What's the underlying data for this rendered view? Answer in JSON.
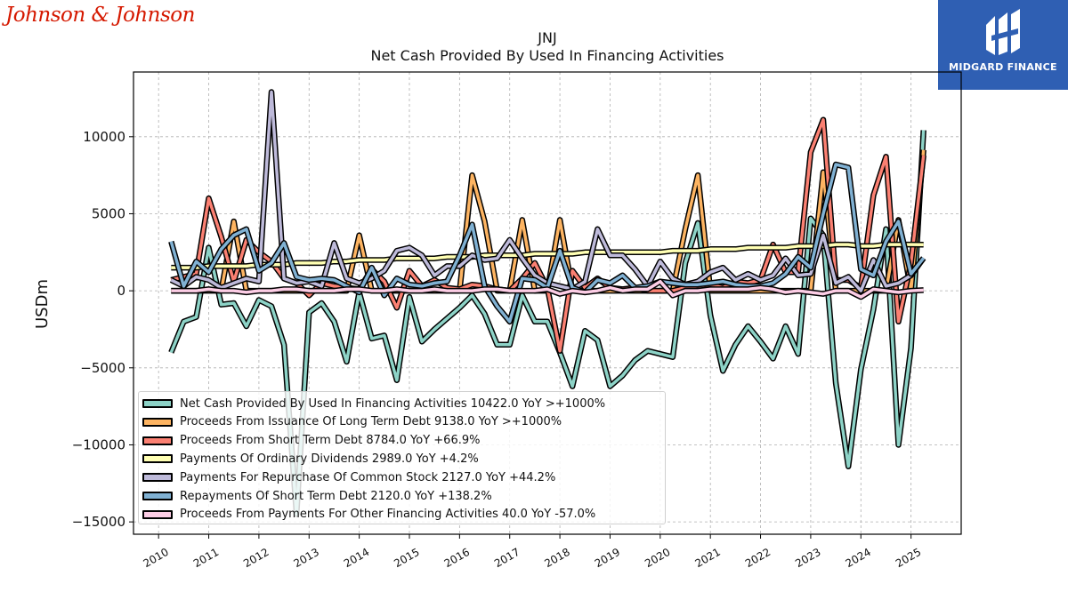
{
  "header": {
    "logo_left_text": "Johnson & Johnson",
    "logo_right_text": "MIDGARD FINANCE"
  },
  "colors": {
    "logo_left": "#d51900",
    "logo_right_bg": "#2f5fb3"
  },
  "chart_data": {
    "type": "line",
    "title": "JNJ",
    "subtitle": "Net Cash Provided By Used In Financing Activities",
    "ylabel": "USDm",
    "xlabel": "",
    "ylim": [
      -15800,
      14200
    ],
    "xlim": [
      2009.5,
      2026.0
    ],
    "yticks": [
      -15000,
      -10000,
      -5000,
      0,
      5000,
      10000
    ],
    "ytick_labels": [
      "−15000",
      "−10000",
      "−5000",
      "0",
      "5000",
      "10000"
    ],
    "xticks": [
      2010,
      2011,
      2012,
      2013,
      2014,
      2015,
      2016,
      2017,
      2018,
      2019,
      2020,
      2021,
      2022,
      2023,
      2024,
      2025
    ],
    "xtick_labels": [
      "2010",
      "2011",
      "2012",
      "2013",
      "2014",
      "2015",
      "2016",
      "2017",
      "2018",
      "2019",
      "2020",
      "2021",
      "2022",
      "2023",
      "2024",
      "2025"
    ],
    "grid": true,
    "legend_position": "lower-left",
    "series": [
      {
        "name": "Net Cash Provided By Used In Financing Activities",
        "legend_label": "Net Cash Provided By Used In Financing Activities  10422.0 YoY >+1000%",
        "color": "#8dd3c7",
        "x": [
          2010.25,
          2010.5,
          2010.75,
          2011.0,
          2011.25,
          2011.5,
          2011.75,
          2012.0,
          2012.25,
          2012.5,
          2012.75,
          2013.0,
          2013.25,
          2013.5,
          2013.75,
          2014.0,
          2014.25,
          2014.5,
          2014.75,
          2015.0,
          2015.25,
          2015.5,
          2015.75,
          2016.0,
          2016.25,
          2016.5,
          2016.75,
          2017.0,
          2017.25,
          2017.5,
          2017.75,
          2018.0,
          2018.25,
          2018.5,
          2018.75,
          2019.0,
          2019.25,
          2019.5,
          2019.75,
          2020.0,
          2020.25,
          2020.5,
          2020.75,
          2021.0,
          2021.25,
          2021.5,
          2021.75,
          2022.0,
          2022.25,
          2022.5,
          2022.75,
          2023.0,
          2023.25,
          2023.5,
          2023.75,
          2024.0,
          2024.25,
          2024.5,
          2024.75,
          2025.0,
          2025.25
        ],
        "y": [
          -4000,
          -2000,
          -1700,
          2800,
          -900,
          -800,
          -2300,
          -600,
          -1000,
          -3500,
          -14500,
          -1400,
          -800,
          -2000,
          -4600,
          -100,
          -3100,
          -2900,
          -5800,
          -400,
          -3300,
          -2500,
          -1800,
          -1100,
          -300,
          -1500,
          -3500,
          -3500,
          -300,
          -2000,
          -2000,
          -4000,
          -6200,
          -2600,
          -3200,
          -6200,
          -5500,
          -4500,
          -3900,
          -4100,
          -4300,
          1800,
          4400,
          -1600,
          -5200,
          -3500,
          -2300,
          -3300,
          -4400,
          -2300,
          -4100,
          4700,
          3600,
          -6000,
          -11400,
          -5100,
          -1200,
          4000,
          -10000,
          -3700,
          10422
        ]
      },
      {
        "name": "Proceeds From Issuance Of Long Term Debt",
        "legend_label": "Proceeds From Issuance Of Long Term Debt  9138.0 YoY >+1000%",
        "color": "#fdb462",
        "x": [
          2010.25,
          2010.5,
          2010.75,
          2011.0,
          2011.25,
          2011.5,
          2011.75,
          2012.0,
          2012.25,
          2012.5,
          2012.75,
          2013.0,
          2013.25,
          2013.5,
          2013.75,
          2014.0,
          2014.25,
          2014.5,
          2014.75,
          2015.0,
          2015.25,
          2015.5,
          2015.75,
          2016.0,
          2016.25,
          2016.5,
          2016.75,
          2017.0,
          2017.25,
          2017.5,
          2017.75,
          2018.0,
          2018.25,
          2018.5,
          2018.75,
          2019.0,
          2019.25,
          2019.5,
          2019.75,
          2020.0,
          2020.25,
          2020.5,
          2020.75,
          2021.0,
          2021.25,
          2021.5,
          2021.75,
          2022.0,
          2022.25,
          2022.5,
          2022.75,
          2023.0,
          2023.25,
          2023.5,
          2023.75,
          2024.0,
          2024.25,
          2024.5,
          2024.75,
          2025.0,
          2025.25
        ],
        "y": [
          0,
          0,
          0,
          0,
          0,
          4500,
          0,
          0,
          0,
          0,
          0,
          0,
          0,
          0,
          0,
          3600,
          0,
          0,
          0,
          0,
          0,
          0,
          0,
          0,
          7500,
          4500,
          0,
          0,
          4600,
          0,
          0,
          4600,
          0,
          0,
          0,
          0,
          0,
          0,
          0,
          0,
          0,
          4000,
          7500,
          0,
          0,
          0,
          0,
          0,
          0,
          0,
          0,
          0,
          7700,
          0,
          0,
          0,
          0,
          0,
          4600,
          0,
          9138
        ]
      },
      {
        "name": "Proceeds From Short Term Debt",
        "legend_label": "Proceeds From Short Term Debt  8784.0 YoY +66.9%",
        "color": "#fb8072",
        "x": [
          2010.25,
          2010.5,
          2010.75,
          2011.0,
          2011.25,
          2011.5,
          2011.75,
          2012.0,
          2012.25,
          2012.5,
          2012.75,
          2013.0,
          2013.25,
          2013.5,
          2013.75,
          2014.0,
          2014.25,
          2014.5,
          2014.75,
          2015.0,
          2015.25,
          2015.5,
          2015.75,
          2016.0,
          2016.25,
          2016.5,
          2016.75,
          2017.0,
          2017.25,
          2017.5,
          2017.75,
          2018.0,
          2018.25,
          2018.5,
          2018.75,
          2019.0,
          2019.25,
          2019.5,
          2019.75,
          2020.0,
          2020.25,
          2020.5,
          2020.75,
          2021.0,
          2021.25,
          2021.5,
          2021.75,
          2022.0,
          2022.25,
          2022.5,
          2022.75,
          2023.0,
          2023.25,
          2023.5,
          2023.75,
          2024.0,
          2024.25,
          2024.5,
          2024.75,
          2025.0,
          2025.25
        ],
        "y": [
          700,
          900,
          1100,
          6000,
          3500,
          600,
          3300,
          2500,
          1900,
          800,
          500,
          -300,
          500,
          300,
          200,
          100,
          1400,
          600,
          -1100,
          1300,
          300,
          700,
          200,
          100,
          400,
          300,
          100,
          0,
          800,
          1800,
          200,
          -3900,
          1300,
          200,
          800,
          200,
          100,
          200,
          0,
          0,
          0,
          200,
          300,
          400,
          200,
          600,
          500,
          700,
          3000,
          1200,
          1200,
          9000,
          11100,
          700,
          700,
          200,
          6200,
          8700,
          -2000,
          1800,
          8784
        ]
      },
      {
        "name": "Payments Of Ordinary Dividends",
        "legend_label": "Payments Of Ordinary Dividends  2989.0 YoY +4.2%",
        "color": "#ffffb3",
        "x": [
          2010.25,
          2010.5,
          2010.75,
          2011.0,
          2011.25,
          2011.5,
          2011.75,
          2012.0,
          2012.25,
          2012.5,
          2012.75,
          2013.0,
          2013.25,
          2013.5,
          2013.75,
          2014.0,
          2014.25,
          2014.5,
          2014.75,
          2015.0,
          2015.25,
          2015.5,
          2015.75,
          2016.0,
          2016.25,
          2016.5,
          2016.75,
          2017.0,
          2017.25,
          2017.5,
          2017.75,
          2018.0,
          2018.25,
          2018.5,
          2018.75,
          2019.0,
          2019.25,
          2019.5,
          2019.75,
          2020.0,
          2020.25,
          2020.5,
          2020.75,
          2021.0,
          2021.25,
          2021.5,
          2021.75,
          2022.0,
          2022.25,
          2022.5,
          2022.75,
          2023.0,
          2023.25,
          2023.5,
          2023.75,
          2024.0,
          2024.25,
          2024.5,
          2024.75,
          2025.0,
          2025.25
        ],
        "y": [
          1500,
          1500,
          1500,
          1600,
          1600,
          1600,
          1600,
          1700,
          1700,
          1700,
          1800,
          1800,
          1800,
          1900,
          1900,
          2000,
          2000,
          2000,
          2100,
          2100,
          2100,
          2100,
          2200,
          2200,
          2200,
          2300,
          2300,
          2300,
          2300,
          2400,
          2400,
          2400,
          2400,
          2500,
          2500,
          2500,
          2500,
          2500,
          2500,
          2500,
          2600,
          2600,
          2600,
          2700,
          2700,
          2700,
          2800,
          2800,
          2800,
          2800,
          2900,
          2900,
          2900,
          3000,
          3000,
          2900,
          2900,
          3000,
          3000,
          3000,
          2989
        ]
      },
      {
        "name": "Payments For Repurchase Of Common Stock",
        "legend_label": "Payments For Repurchase Of Common Stock  2127.0 YoY +44.2%",
        "color": "#bebada",
        "x": [
          2010.25,
          2010.5,
          2010.75,
          2011.0,
          2011.25,
          2011.5,
          2011.75,
          2012.0,
          2012.25,
          2012.5,
          2012.75,
          2013.0,
          2013.25,
          2013.5,
          2013.75,
          2014.0,
          2014.25,
          2014.5,
          2014.75,
          2015.0,
          2015.25,
          2015.5,
          2015.75,
          2016.0,
          2016.25,
          2016.5,
          2016.75,
          2017.0,
          2017.25,
          2017.5,
          2017.75,
          2018.0,
          2018.25,
          2018.5,
          2018.75,
          2019.0,
          2019.25,
          2019.5,
          2019.75,
          2020.0,
          2020.25,
          2020.5,
          2020.75,
          2021.0,
          2021.25,
          2021.5,
          2021.75,
          2022.0,
          2022.25,
          2022.5,
          2022.75,
          2023.0,
          2023.25,
          2023.5,
          2023.75,
          2024.0,
          2024.25,
          2024.5,
          2024.75,
          2025.0,
          2025.25
        ],
        "y": [
          700,
          300,
          900,
          700,
          200,
          500,
          800,
          600,
          12900,
          800,
          500,
          600,
          300,
          3100,
          800,
          500,
          800,
          1300,
          2600,
          2800,
          2300,
          1000,
          1600,
          1600,
          2300,
          2000,
          2100,
          3300,
          2100,
          1000,
          500,
          300,
          100,
          600,
          4000,
          2300,
          2300,
          1400,
          300,
          1900,
          800,
          400,
          600,
          1200,
          1500,
          700,
          1100,
          700,
          1000,
          2100,
          1000,
          1100,
          3600,
          500,
          900,
          0,
          2000,
          300,
          500,
          1000,
          2127
        ]
      },
      {
        "name": "Repayments Of Short Term Debt",
        "legend_label": "Repayments Of Short Term Debt  2120.0 YoY +138.2%",
        "color": "#80b1d3",
        "x": [
          2010.25,
          2010.5,
          2010.75,
          2011.0,
          2011.25,
          2011.5,
          2011.75,
          2012.0,
          2012.25,
          2012.5,
          2012.75,
          2013.0,
          2013.25,
          2013.5,
          2013.75,
          2014.0,
          2014.25,
          2014.5,
          2014.75,
          2015.0,
          2015.25,
          2015.5,
          2015.75,
          2016.0,
          2016.25,
          2016.5,
          2016.75,
          2017.0,
          2017.25,
          2017.5,
          2017.75,
          2018.0,
          2018.25,
          2018.5,
          2018.75,
          2019.0,
          2019.25,
          2019.5,
          2019.75,
          2020.0,
          2020.25,
          2020.5,
          2020.75,
          2021.0,
          2021.25,
          2021.5,
          2021.75,
          2022.0,
          2022.25,
          2022.5,
          2022.75,
          2023.0,
          2023.25,
          2023.5,
          2023.75,
          2024.0,
          2024.25,
          2024.5,
          2024.75,
          2025.0,
          2025.25
        ],
        "y": [
          3200,
          300,
          1900,
          1200,
          2700,
          3600,
          4000,
          1300,
          1800,
          3100,
          900,
          700,
          800,
          700,
          300,
          -100,
          1500,
          -300,
          800,
          400,
          300,
          500,
          600,
          2300,
          4300,
          300,
          -1000,
          -2000,
          800,
          700,
          200,
          2600,
          200,
          -100,
          700,
          500,
          1000,
          200,
          300,
          600,
          500,
          400,
          400,
          500,
          600,
          400,
          300,
          300,
          500,
          1100,
          2200,
          1500,
          5000,
          8200,
          8000,
          1400,
          1000,
          3200,
          4500,
          1100,
          2120
        ]
      },
      {
        "name": "Proceeds From Payments For Other Financing Activities",
        "legend_label": "Proceeds From Payments For Other Financing Activities  40.0 YoY -57.0%",
        "color": "#fccde5",
        "x": [
          2010.25,
          2010.5,
          2010.75,
          2011.0,
          2011.25,
          2011.5,
          2011.75,
          2012.0,
          2012.25,
          2012.5,
          2012.75,
          2013.0,
          2013.25,
          2013.5,
          2013.75,
          2014.0,
          2014.25,
          2014.5,
          2014.75,
          2015.0,
          2015.25,
          2015.5,
          2015.75,
          2016.0,
          2016.25,
          2016.5,
          2016.75,
          2017.0,
          2017.25,
          2017.5,
          2017.75,
          2018.0,
          2018.25,
          2018.5,
          2018.75,
          2019.0,
          2019.25,
          2019.5,
          2019.75,
          2020.0,
          2020.25,
          2020.5,
          2020.75,
          2021.0,
          2021.25,
          2021.5,
          2021.75,
          2022.0,
          2022.25,
          2022.5,
          2022.75,
          2023.0,
          2023.25,
          2023.5,
          2023.75,
          2024.0,
          2024.25,
          2024.5,
          2024.75,
          2025.0,
          2025.25
        ],
        "y": [
          0,
          0,
          0,
          100,
          0,
          0,
          -100,
          0,
          0,
          100,
          100,
          0,
          0,
          0,
          100,
          100,
          0,
          0,
          100,
          0,
          0,
          100,
          0,
          0,
          0,
          100,
          100,
          0,
          0,
          0,
          100,
          -200,
          0,
          -100,
          0,
          200,
          0,
          100,
          100,
          600,
          -300,
          0,
          0,
          100,
          100,
          100,
          100,
          200,
          100,
          -100,
          0,
          -100,
          -200,
          0,
          0,
          -400,
          100,
          0,
          -100,
          0,
          40
        ]
      }
    ]
  }
}
